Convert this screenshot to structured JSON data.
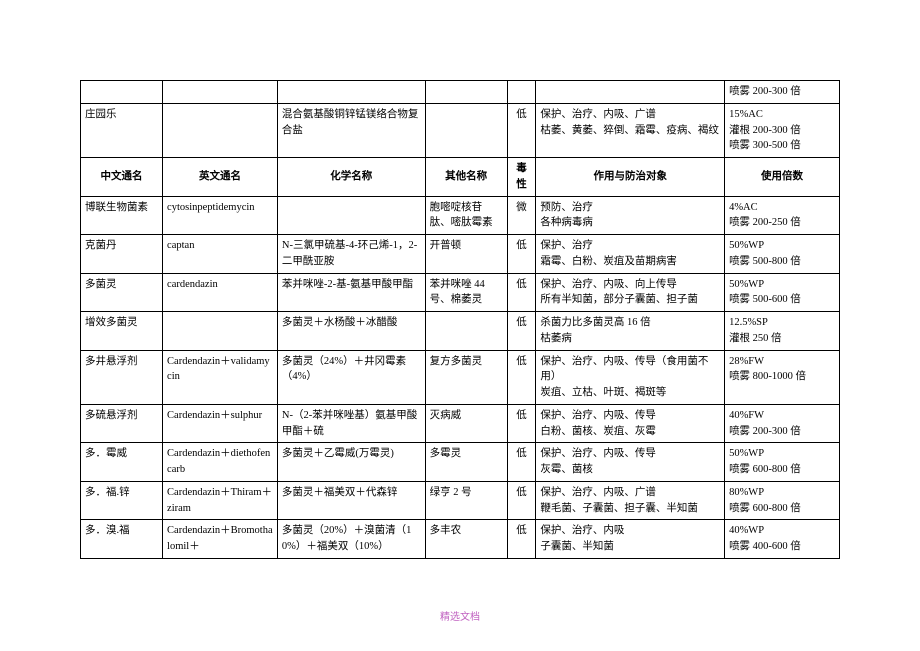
{
  "footer": "精选文档",
  "headers": {
    "c1": "中文通名",
    "c2": "英文通名",
    "c3": "化学名称",
    "c4": "其他名称",
    "c5": "毒性",
    "c6": "作用与防治对象",
    "c7": "使用倍数"
  },
  "preRows": [
    {
      "c1": "",
      "c2": "",
      "c3": "",
      "c4": "",
      "c5": "",
      "c6": "",
      "c7": "喷雾 200-300 倍"
    },
    {
      "c1": "庄园乐",
      "c2": "",
      "c3": "混合氨基酸铜锌锰镁络合物复合盐",
      "c4": "",
      "c5": "低",
      "c6": "保护、治疗、内吸、广谱\n枯萎、黄萎、猝倒、霜霉、疫病、褐纹",
      "c7": "15%AC\n灌根 200-300 倍\n喷雾 300-500 倍"
    }
  ],
  "rows": [
    {
      "c1": "博联生物菌素",
      "c2": "cytosinpeptidemycin",
      "c3": "",
      "c4": "胞嘧啶核苷肽、嘧肽霉素",
      "c5": "微",
      "c6": "预防、治疗\n各种病毒病",
      "c7": "4%AC\n喷雾 200-250 倍"
    },
    {
      "c1": "克菌丹",
      "c2": "captan",
      "c3": "N-三氯甲硫基-4-环己烯-1，2-二甲酰亚胺",
      "c4": "开普顿",
      "c5": "低",
      "c6": "保护、治疗\n霜霉、白粉、炭疽及苗期病害",
      "c7": "50%WP\n喷雾 500-800 倍"
    },
    {
      "c1": "多菌灵",
      "c2": "cardendazin",
      "c3": "苯并咪唑-2-基-氨基甲酸甲酯",
      "c4": "苯并咪唑 44 号、棉萎灵",
      "c5": "低",
      "c6": "保护、治疗、内吸、向上传导\n所有半知菌，部分子囊菌、担子菌",
      "c7": "50%WP\n喷雾 500-600 倍"
    },
    {
      "c1": "增效多菌灵",
      "c2": "",
      "c3": "多菌灵＋水杨酸＋冰醋酸",
      "c4": "",
      "c5": "低",
      "c6": "杀菌力比多菌灵高 16 倍\n枯萎病",
      "c7": "12.5%SP\n灌根 250 倍"
    },
    {
      "c1": "多井悬浮剂",
      "c2": "Cardendazin＋validamycin",
      "c3": "多菌灵（24%）＋井冈霉素（4%）",
      "c4": "复方多菌灵",
      "c5": "低",
      "c6": "保护、治疗、内吸、传导（食用菌不用）\n炭疽、立枯、叶斑、褐斑等",
      "c7": "28%FW\n喷雾 800-1000 倍"
    },
    {
      "c1": "多硫悬浮剂",
      "c2": "Cardendazin＋sulphur",
      "c3": "N-（2-苯并咪唑基）氨基甲酸甲酯＋硫",
      "c4": "灭病威",
      "c5": "低",
      "c6": "保护、治疗、内吸、传导\n白粉、菌核、炭疽、灰霉",
      "c7": "40%FW\n喷雾 200-300 倍"
    },
    {
      "c1": "多．霉威",
      "c2": "Cardendazin＋diethofencarb",
      "c3": "多菌灵＋乙霉威(万霉灵)",
      "c4": "多霉灵",
      "c5": "低",
      "c6": "保护、治疗、内吸、传导\n灰霉、菌核",
      "c7": "50%WP\n喷雾 600-800 倍"
    },
    {
      "c1": "多．福.锌",
      "c2": "Cardendazin＋Thiram＋ziram",
      "c3": "多菌灵＋福美双＋代森锌",
      "c4": "绿亨 2 号",
      "c5": "低",
      "c6": "保护、治疗、内吸、广谱\n鞭毛菌、子囊菌、担子囊、半知菌",
      "c7": "80%WP\n喷雾 600-800 倍"
    },
    {
      "c1": "多．溴.福",
      "c2": "Cardendazin＋Bromothalomil＋",
      "c3": "多菌灵（20%）＋溴菌清（10%）＋福美双（10%）",
      "c4": "多丰农",
      "c5": "低",
      "c6": "保护、治疗、内吸\n子囊菌、半知菌",
      "c7": "40%WP\n喷雾 400-600 倍"
    }
  ]
}
